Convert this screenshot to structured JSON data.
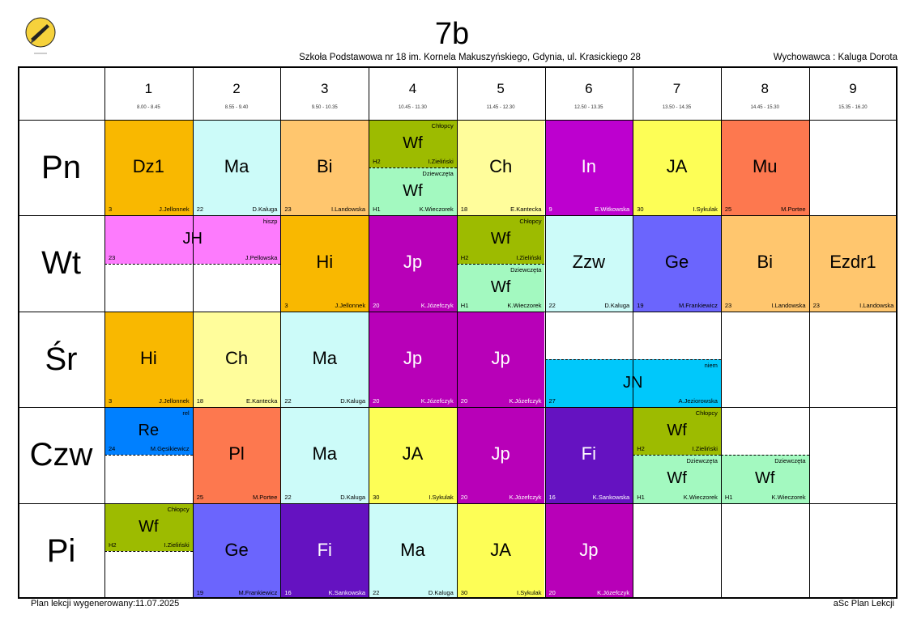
{
  "header": {
    "class_name": "7b",
    "school": "Szkoła Podstawowa nr 18 im. Kornela Makuszyńskiego, Gdynia, ul. Krasickiego 28",
    "form_teacher": "Wychowawca : Kaluga Dorota"
  },
  "periods": [
    {
      "num": "1",
      "time": "8.00 - 8.45"
    },
    {
      "num": "2",
      "time": "8.55 - 9.40"
    },
    {
      "num": "3",
      "time": "9.50 - 10.35"
    },
    {
      "num": "4",
      "time": "10.45 - 11.30"
    },
    {
      "num": "5",
      "time": "11.45 - 12.30"
    },
    {
      "num": "6",
      "time": "12.50 - 13.35"
    },
    {
      "num": "7",
      "time": "13.50 - 14.35"
    },
    {
      "num": "8",
      "time": "14.45 - 15.30"
    },
    {
      "num": "9",
      "time": "15.35 - 16.20"
    }
  ],
  "days": [
    "Pn",
    "Wt",
    "Śr",
    "Czw",
    "Pi"
  ],
  "colors": {
    "dz1": "#f9b800",
    "ma": "#ccfbf9",
    "bi": "#ffc66e",
    "wf_boys": "#9dbb00",
    "wf_girls": "#a3f9c0",
    "ch": "#fffd9b",
    "in": "#bd00cf",
    "ja": "#fdfe56",
    "mu": "#fd784f",
    "jh": "#fd7bfd",
    "hi": "#f9b800",
    "jp": "#b800b8",
    "zzw": "#ccfbf9",
    "ge": "#6b65fd",
    "ezdr": "#ffc66e",
    "jn": "#00c8fb",
    "re": "#0080ff",
    "pl": "#fd784f",
    "fi": "#6512c1"
  },
  "lessons": [
    {
      "day": 0,
      "p": 0,
      "span": 1,
      "subject": "Dz1",
      "room": "3",
      "teacher": "J.Jellonnek",
      "color": "#f9b800",
      "part": "full"
    },
    {
      "day": 0,
      "p": 1,
      "span": 1,
      "subject": "Ma",
      "room": "22",
      "teacher": "D.Kaluga",
      "color": "#ccfbf9",
      "part": "full"
    },
    {
      "day": 0,
      "p": 2,
      "span": 1,
      "subject": "Bi",
      "room": "23",
      "teacher": "I.Landowska",
      "color": "#ffc66e",
      "part": "full"
    },
    {
      "day": 0,
      "p": 3,
      "span": 1,
      "subject": "Wf",
      "room": "H2",
      "teacher": "I.Zieliński",
      "group": "Chłopcy",
      "color": "#9dbb00",
      "part": "top"
    },
    {
      "day": 0,
      "p": 3,
      "span": 1,
      "subject": "Wf",
      "room": "H1",
      "teacher": "K.Wieczorek",
      "group": "Dziewczęta",
      "color": "#a3f9c0",
      "part": "bottom"
    },
    {
      "day": 0,
      "p": 4,
      "span": 1,
      "subject": "Ch",
      "room": "18",
      "teacher": "E.Kantecka",
      "color": "#fffd9b",
      "part": "full"
    },
    {
      "day": 0,
      "p": 5,
      "span": 1,
      "subject": "In",
      "room": "9",
      "teacher": "E.Witkowska",
      "color": "#bd00cf",
      "part": "full",
      "light": true
    },
    {
      "day": 0,
      "p": 6,
      "span": 1,
      "subject": "JA",
      "room": "30",
      "teacher": "I.Sykulak",
      "color": "#fdfe56",
      "part": "full"
    },
    {
      "day": 0,
      "p": 7,
      "span": 1,
      "subject": "Mu",
      "room": "25",
      "teacher": "M.Portee",
      "color": "#fd784f",
      "part": "full"
    },
    {
      "day": 1,
      "p": 0,
      "span": 2,
      "subject": "JH",
      "room": "23",
      "teacher": "J.Pellowska",
      "group": "hiszp",
      "color": "#fd7bfd",
      "part": "top"
    },
    {
      "day": 1,
      "p": 2,
      "span": 1,
      "subject": "Hi",
      "room": "3",
      "teacher": "J.Jellonnek",
      "color": "#f9b800",
      "part": "full"
    },
    {
      "day": 1,
      "p": 3,
      "span": 1,
      "subject": "Jp",
      "room": "20",
      "teacher": "K.Józefczyk",
      "color": "#b800b8",
      "part": "full",
      "light": true
    },
    {
      "day": 1,
      "p": 4,
      "span": 1,
      "subject": "Wf",
      "room": "H2",
      "teacher": "I.Zieliński",
      "group": "Chłopcy",
      "color": "#9dbb00",
      "part": "top"
    },
    {
      "day": 1,
      "p": 4,
      "span": 1,
      "subject": "Wf",
      "room": "H1",
      "teacher": "K.Wieczorek",
      "group": "Dziewczęta",
      "color": "#a3f9c0",
      "part": "bottom"
    },
    {
      "day": 1,
      "p": 5,
      "span": 1,
      "subject": "Zzw",
      "room": "22",
      "teacher": "D.Kaluga",
      "color": "#ccfbf9",
      "part": "full"
    },
    {
      "day": 1,
      "p": 6,
      "span": 1,
      "subject": "Ge",
      "room": "19",
      "teacher": "M.Frankiewicz",
      "color": "#6b65fd",
      "part": "full"
    },
    {
      "day": 1,
      "p": 7,
      "span": 1,
      "subject": "Bi",
      "room": "23",
      "teacher": "I.Landowska",
      "color": "#ffc66e",
      "part": "full"
    },
    {
      "day": 1,
      "p": 8,
      "span": 1,
      "subject": "Ezdr1",
      "room": "23",
      "teacher": "I.Landowska",
      "color": "#ffc66e",
      "part": "full"
    },
    {
      "day": 2,
      "p": 0,
      "span": 1,
      "subject": "Hi",
      "room": "3",
      "teacher": "J.Jellonnek",
      "color": "#f9b800",
      "part": "full"
    },
    {
      "day": 2,
      "p": 1,
      "span": 1,
      "subject": "Ch",
      "room": "18",
      "teacher": "E.Kantecka",
      "color": "#fffd9b",
      "part": "full"
    },
    {
      "day": 2,
      "p": 2,
      "span": 1,
      "subject": "Ma",
      "room": "22",
      "teacher": "D.Kaluga",
      "color": "#ccfbf9",
      "part": "full"
    },
    {
      "day": 2,
      "p": 3,
      "span": 1,
      "subject": "Jp",
      "room": "20",
      "teacher": "K.Józefczyk",
      "color": "#b800b8",
      "part": "full",
      "light": true
    },
    {
      "day": 2,
      "p": 4,
      "span": 1,
      "subject": "Jp",
      "room": "20",
      "teacher": "K.Józefczyk",
      "color": "#b800b8",
      "part": "full",
      "light": true
    },
    {
      "day": 2,
      "p": 5,
      "span": 2,
      "subject": "JN",
      "room": "27",
      "teacher": "A.Jeziorowska",
      "group": "niem",
      "color": "#00c8fb",
      "part": "bottom"
    },
    {
      "day": 3,
      "p": 0,
      "span": 1,
      "subject": "Re",
      "room": "24",
      "teacher": "M.Gęsikiewicz",
      "group": "rel",
      "color": "#0080ff",
      "part": "top"
    },
    {
      "day": 3,
      "p": 1,
      "span": 1,
      "subject": "Pl",
      "room": "25",
      "teacher": "M.Portee",
      "color": "#fd784f",
      "part": "full"
    },
    {
      "day": 3,
      "p": 2,
      "span": 1,
      "subject": "Ma",
      "room": "22",
      "teacher": "D.Kaluga",
      "color": "#ccfbf9",
      "part": "full"
    },
    {
      "day": 3,
      "p": 3,
      "span": 1,
      "subject": "JA",
      "room": "30",
      "teacher": "I.Sykulak",
      "color": "#fdfe56",
      "part": "full"
    },
    {
      "day": 3,
      "p": 4,
      "span": 1,
      "subject": "Jp",
      "room": "20",
      "teacher": "K.Józefczyk",
      "color": "#b800b8",
      "part": "full",
      "light": true
    },
    {
      "day": 3,
      "p": 5,
      "span": 1,
      "subject": "Fi",
      "room": "16",
      "teacher": "K.Sankowska",
      "color": "#6512c1",
      "part": "full",
      "light": true
    },
    {
      "day": 3,
      "p": 6,
      "span": 1,
      "subject": "Wf",
      "room": "H2",
      "teacher": "I.Zieliński",
      "group": "Chłopcy",
      "color": "#9dbb00",
      "part": "top"
    },
    {
      "day": 3,
      "p": 6,
      "span": 1,
      "subject": "Wf",
      "room": "H1",
      "teacher": "K.Wieczorek",
      "group": "Dziewczęta",
      "color": "#a3f9c0",
      "part": "bottom"
    },
    {
      "day": 3,
      "p": 7,
      "span": 1,
      "subject": "Wf",
      "room": "H1",
      "teacher": "K.Wieczorek",
      "group": "Dziewczęta",
      "color": "#a3f9c0",
      "part": "bottom"
    },
    {
      "day": 4,
      "p": 0,
      "span": 1,
      "subject": "Wf",
      "room": "H2",
      "teacher": "I.Zieliński",
      "group": "Chłopcy",
      "color": "#9dbb00",
      "part": "top"
    },
    {
      "day": 4,
      "p": 1,
      "span": 1,
      "subject": "Ge",
      "room": "19",
      "teacher": "M.Frankiewicz",
      "color": "#6b65fd",
      "part": "full"
    },
    {
      "day": 4,
      "p": 2,
      "span": 1,
      "subject": "Fi",
      "room": "16",
      "teacher": "K.Sankowska",
      "color": "#6512c1",
      "part": "full",
      "light": true
    },
    {
      "day": 4,
      "p": 3,
      "span": 1,
      "subject": "Ma",
      "room": "22",
      "teacher": "D.Kaluga",
      "color": "#ccfbf9",
      "part": "full"
    },
    {
      "day": 4,
      "p": 4,
      "span": 1,
      "subject": "JA",
      "room": "30",
      "teacher": "I.Sykulak",
      "color": "#fdfe56",
      "part": "full"
    },
    {
      "day": 4,
      "p": 5,
      "span": 1,
      "subject": "Jp",
      "room": "20",
      "teacher": "K.Józefczyk",
      "color": "#b800b8",
      "part": "full",
      "light": true
    }
  ],
  "footer": {
    "generated": "Plan lekcji wygenerowany:11.07.2025",
    "brand": "aSc Plan Lekcji"
  },
  "logo": {
    "icon": "pen-nib-school-logo"
  }
}
